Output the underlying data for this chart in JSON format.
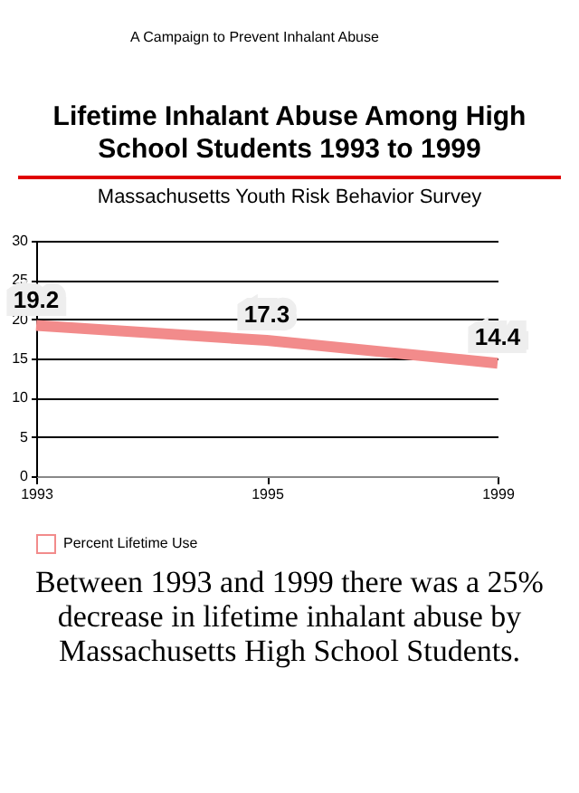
{
  "chart_data": {
    "type": "line",
    "title": "Lifetime Inhalant Abuse Among High School Students 1993 to 1999",
    "subtitle": "Massachusetts Youth Risk Behavior Survey",
    "annotations": [
      "A Campaign to Prevent Inhalant Abuse",
      "Between 1993 and 1999 there was a 25% decrease in lifetime inhalant abuse by Massachusetts High School Students."
    ],
    "categories": [
      "1993",
      "1995",
      "1999"
    ],
    "series": [
      {
        "name": "Percent Lifetime Use",
        "color": "#f28b8b",
        "values": [
          19.2,
          17.3,
          14.4
        ]
      }
    ],
    "ylim": [
      0,
      30
    ],
    "yticks": [
      0,
      5,
      10,
      15,
      20,
      25,
      30
    ],
    "grid": "y",
    "legend": "bottom",
    "data_labels": true,
    "marker": "none"
  }
}
